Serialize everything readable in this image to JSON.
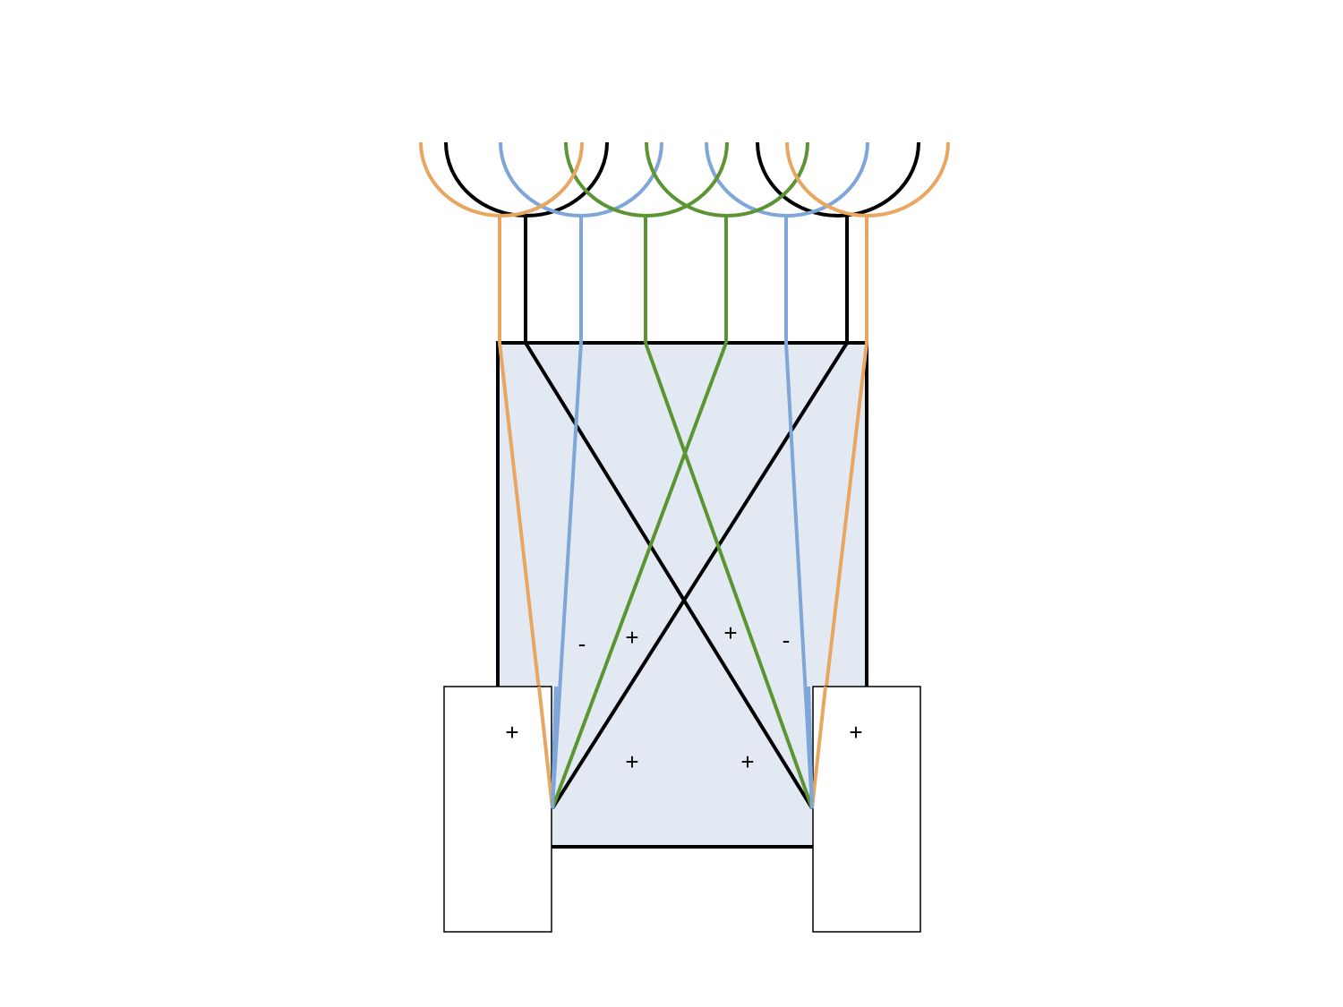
{
  "colors": {
    "background": "#ffffff",
    "panel_fill": "#e3e9f3",
    "outline": "#000000",
    "orange_wire": "#e8a661",
    "blue_wire": "#7ea6d8",
    "green_wire": "#5b9533",
    "black_wire": "#000000",
    "terminal_fill": "#ffffff"
  },
  "labels": {
    "inner_left_minus": "-",
    "inner_left_plus": "+",
    "inner_right_plus": "+",
    "inner_right_minus": "-",
    "left_terminal_plus": "+",
    "right_terminal_plus": "+",
    "lower_left_plus": "+",
    "lower_right_plus": "+"
  }
}
